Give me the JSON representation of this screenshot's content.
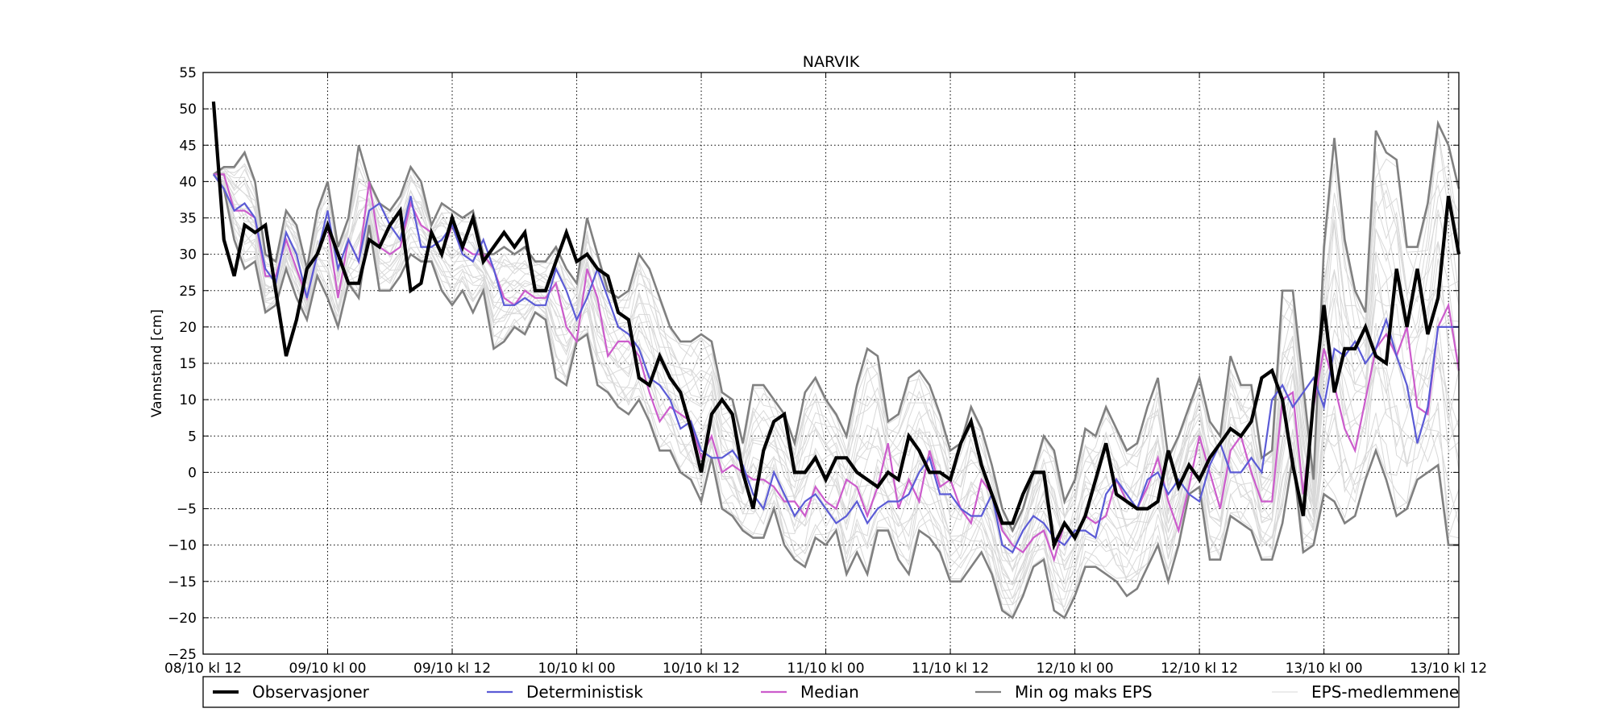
{
  "chart_data": {
    "type": "line",
    "title": "NARVIK",
    "xlabel": "",
    "ylabel": "Vannstand [cm]",
    "ylim": [
      -25,
      55
    ],
    "yticks": [
      55,
      50,
      45,
      40,
      35,
      30,
      25,
      20,
      15,
      10,
      5,
      0,
      -5,
      -10,
      -15,
      -20,
      -25
    ],
    "x_range_hours": [
      0,
      121
    ],
    "x_ticks": [
      {
        "hour": 0,
        "label": "08/10 kl 12"
      },
      {
        "hour": 12,
        "label": "09/10 kl 00"
      },
      {
        "hour": 24,
        "label": "09/10 kl 12"
      },
      {
        "hour": 36,
        "label": "10/10 kl 00"
      },
      {
        "hour": 48,
        "label": "10/10 kl 12"
      },
      {
        "hour": 60,
        "label": "11/10 kl 00"
      },
      {
        "hour": 72,
        "label": "11/10 kl 12"
      },
      {
        "hour": 84,
        "label": "12/10 kl 00"
      },
      {
        "hour": 96,
        "label": "12/10 kl 12"
      },
      {
        "hour": 108,
        "label": "13/10 kl 00"
      },
      {
        "hour": 120,
        "label": "13/10 kl 12"
      }
    ],
    "grid": true,
    "legend_position": "bottom",
    "colors": {
      "observations": "#000000",
      "deterministic": "#5b5bd6",
      "median": "#cc5ccc",
      "minmax": "#808080",
      "members": "#d9d9d9"
    },
    "series": [
      {
        "name": "Observasjoner",
        "key": "observations",
        "x": [
          1,
          2,
          3,
          4,
          5,
          6,
          7,
          8,
          9,
          10,
          11,
          12,
          13,
          14,
          15,
          16,
          17,
          18,
          19,
          20,
          21,
          22,
          23,
          24,
          25,
          26,
          27,
          28,
          29,
          30,
          31,
          32,
          33,
          34,
          35,
          36,
          37,
          38,
          39,
          40,
          41,
          42,
          43,
          44,
          45,
          46,
          47,
          48,
          49,
          50,
          51,
          52,
          53,
          54,
          55,
          56,
          57,
          58,
          59,
          60,
          61,
          62,
          63,
          64,
          65,
          66,
          67,
          68,
          69,
          70,
          71,
          72,
          73,
          74,
          75,
          76,
          77,
          78,
          79,
          80,
          81,
          82,
          83,
          84,
          85,
          86,
          87,
          88,
          89,
          90,
          91,
          92,
          93,
          94,
          95,
          96,
          97,
          98,
          99,
          100,
          101,
          102,
          103,
          104,
          105,
          106,
          107,
          108,
          109,
          110,
          111,
          112,
          113,
          114,
          115,
          116,
          117,
          118,
          119,
          120,
          121
        ],
        "values": [
          51,
          32,
          27,
          34,
          33,
          34,
          25,
          16,
          21,
          28,
          30,
          34,
          30,
          26,
          26,
          32,
          31,
          34,
          36,
          25,
          26,
          33,
          30,
          35,
          31,
          35,
          29,
          31,
          33,
          31,
          33,
          25,
          25,
          29,
          33,
          29,
          30,
          28,
          27,
          22,
          21,
          13,
          12,
          16,
          13,
          11,
          6,
          0,
          8,
          10,
          8,
          0,
          -5,
          3,
          7,
          8,
          0,
          0,
          2,
          -1,
          2,
          2,
          0,
          -1,
          -2,
          0,
          -1,
          5,
          3,
          0,
          0,
          -1,
          4,
          7,
          1,
          -3,
          -7,
          -7,
          -3,
          0,
          0,
          -10,
          -7,
          -9,
          -6,
          -1,
          4,
          -3,
          -4,
          -5,
          -5,
          -4,
          3,
          -2,
          1,
          -1,
          2,
          4,
          6,
          5,
          7,
          13,
          14,
          10,
          1,
          -6,
          10,
          23,
          11,
          17,
          17,
          20,
          16,
          15,
          28,
          20,
          28,
          19,
          24,
          38,
          30
        ]
      },
      {
        "name": "Deterministisk",
        "key": "deterministic",
        "x": [
          1,
          2,
          3,
          4,
          5,
          6,
          7,
          8,
          9,
          10,
          11,
          12,
          13,
          14,
          15,
          16,
          17,
          18,
          19,
          20,
          21,
          22,
          23,
          24,
          25,
          26,
          27,
          28,
          29,
          30,
          31,
          32,
          33,
          34,
          35,
          36,
          37,
          38,
          39,
          40,
          41,
          42,
          43,
          44,
          45,
          46,
          47,
          48,
          49,
          50,
          51,
          52,
          53,
          54,
          55,
          56,
          57,
          58,
          59,
          60,
          61,
          62,
          63,
          64,
          65,
          66,
          67,
          68,
          69,
          70,
          71,
          72,
          73,
          74,
          75,
          76,
          77,
          78,
          79,
          80,
          81,
          82,
          83,
          84,
          85,
          86,
          87,
          88,
          89,
          90,
          91,
          92,
          93,
          94,
          95,
          96,
          97,
          98,
          99,
          100,
          101,
          102,
          103,
          104,
          105,
          106,
          107,
          108,
          109,
          110,
          111,
          112,
          113,
          114,
          115,
          116,
          117,
          118,
          119,
          120,
          121
        ],
        "values": [
          41,
          39,
          36,
          37,
          35,
          28,
          26,
          33,
          30,
          24,
          30,
          36,
          28,
          32,
          29,
          36,
          37,
          34,
          32,
          38,
          31,
          31,
          32,
          34,
          30,
          29,
          32,
          28,
          23,
          23,
          24,
          23,
          23,
          28,
          25,
          21,
          24,
          28,
          24,
          20,
          19,
          17,
          13,
          12,
          10,
          6,
          7,
          3,
          2,
          2,
          3,
          1,
          -3,
          -5,
          0,
          -3,
          -6,
          -4,
          -3,
          -5,
          -7,
          -6,
          -4,
          -7,
          -5,
          -4,
          -4,
          -3,
          0,
          2,
          -3,
          -3,
          -5,
          -6,
          -6,
          -3,
          -10,
          -11,
          -8,
          -6,
          -7,
          -9,
          -10,
          -8,
          -8,
          -9,
          -3,
          -1,
          -3,
          -5,
          -1,
          0,
          -3,
          -1,
          -3,
          -4,
          1,
          4,
          0,
          0,
          2,
          0,
          10,
          12,
          9,
          11,
          13,
          9,
          17,
          16,
          18,
          15,
          17,
          21,
          16,
          12,
          4,
          9,
          20,
          20,
          20
        ]
      },
      {
        "name": "Median",
        "key": "median",
        "x": [
          1,
          2,
          3,
          4,
          5,
          6,
          7,
          8,
          9,
          10,
          11,
          12,
          13,
          14,
          15,
          16,
          17,
          18,
          19,
          20,
          21,
          22,
          23,
          24,
          25,
          26,
          27,
          28,
          29,
          30,
          31,
          32,
          33,
          34,
          35,
          36,
          37,
          38,
          39,
          40,
          41,
          42,
          43,
          44,
          45,
          46,
          47,
          48,
          49,
          50,
          51,
          52,
          53,
          54,
          55,
          56,
          57,
          58,
          59,
          60,
          61,
          62,
          63,
          64,
          65,
          66,
          67,
          68,
          69,
          70,
          71,
          72,
          73,
          74,
          75,
          76,
          77,
          78,
          79,
          80,
          81,
          82,
          83,
          84,
          85,
          86,
          87,
          88,
          89,
          90,
          91,
          92,
          93,
          94,
          95,
          96,
          97,
          98,
          99,
          100,
          101,
          102,
          103,
          104,
          105,
          106,
          107,
          108,
          109,
          110,
          111,
          112,
          113,
          114,
          115,
          116,
          117,
          118,
          119,
          120,
          121
        ],
        "values": [
          41,
          41,
          36,
          36,
          35,
          27,
          27,
          32,
          28,
          24,
          30,
          34,
          24,
          32,
          29,
          40,
          31,
          30,
          31,
          37,
          34,
          33,
          30,
          34,
          31,
          30,
          30,
          28,
          24,
          23,
          25,
          24,
          24,
          26,
          20,
          18,
          28,
          24,
          16,
          18,
          18,
          16,
          11,
          7,
          9,
          8,
          7,
          2,
          5,
          0,
          1,
          0,
          -1,
          -1,
          -2,
          -4,
          -4,
          -6,
          -2,
          -4,
          -5,
          -1,
          -2,
          -6,
          -2,
          4,
          -5,
          -1,
          -4,
          3,
          -2,
          -1,
          -5,
          -7,
          -1,
          -3,
          -8,
          -10,
          -11,
          -9,
          -8,
          -12,
          -7,
          -9,
          -6,
          -7,
          -6,
          -1,
          -4,
          -5,
          -2,
          2,
          -4,
          -8,
          -2,
          5,
          0,
          -5,
          3,
          5,
          0,
          -4,
          -4,
          10,
          11,
          -3,
          9,
          17,
          12,
          6,
          3,
          10,
          17,
          19,
          16,
          20,
          9,
          8,
          20,
          23,
          14
        ]
      },
      {
        "name": "Min og maks EPS",
        "key": "max",
        "x": [
          1,
          2,
          3,
          4,
          5,
          6,
          7,
          8,
          9,
          10,
          11,
          12,
          13,
          14,
          15,
          16,
          17,
          18,
          19,
          20,
          21,
          22,
          23,
          24,
          25,
          26,
          27,
          28,
          29,
          30,
          31,
          32,
          33,
          34,
          35,
          36,
          37,
          38,
          39,
          40,
          41,
          42,
          43,
          44,
          45,
          46,
          47,
          48,
          49,
          50,
          51,
          52,
          53,
          54,
          55,
          56,
          57,
          58,
          59,
          60,
          61,
          62,
          63,
          64,
          65,
          66,
          67,
          68,
          69,
          70,
          71,
          72,
          73,
          74,
          75,
          76,
          77,
          78,
          79,
          80,
          81,
          82,
          83,
          84,
          85,
          86,
          87,
          88,
          89,
          90,
          91,
          92,
          93,
          94,
          95,
          96,
          97,
          98,
          99,
          100,
          101,
          102,
          103,
          104,
          105,
          106,
          107,
          108,
          109,
          110,
          111,
          112,
          113,
          114,
          115,
          116,
          117,
          118,
          119,
          120,
          121
        ],
        "values": [
          41,
          42,
          42,
          44,
          40,
          30,
          29,
          36,
          34,
          28,
          36,
          40,
          31,
          35,
          45,
          40,
          37,
          36,
          38,
          42,
          40,
          34,
          37,
          36,
          35,
          36,
          30,
          30,
          31,
          30,
          31,
          29,
          29,
          31,
          28,
          26,
          35,
          30,
          25,
          24,
          25,
          30,
          28,
          24,
          20,
          18,
          18,
          19,
          18,
          11,
          10,
          4,
          12,
          12,
          10,
          8,
          4,
          11,
          13,
          10,
          8,
          5,
          12,
          17,
          16,
          7,
          8,
          13,
          14,
          12,
          8,
          3,
          4,
          9,
          6,
          1,
          -5,
          -8,
          -5,
          0,
          5,
          3,
          -4,
          -1,
          6,
          5,
          9,
          6,
          3,
          4,
          9,
          13,
          2,
          5,
          9,
          13,
          7,
          5,
          16,
          12,
          12,
          2,
          3,
          25,
          25,
          12,
          -1,
          31,
          46,
          32,
          25,
          22,
          47,
          44,
          43,
          31,
          31,
          37,
          48,
          45,
          39
        ]
      },
      {
        "name": "",
        "key": "min",
        "x": [
          1,
          2,
          3,
          4,
          5,
          6,
          7,
          8,
          9,
          10,
          11,
          12,
          13,
          14,
          15,
          16,
          17,
          18,
          19,
          20,
          21,
          22,
          23,
          24,
          25,
          26,
          27,
          28,
          29,
          30,
          31,
          32,
          33,
          34,
          35,
          36,
          37,
          38,
          39,
          40,
          41,
          42,
          43,
          44,
          45,
          46,
          47,
          48,
          49,
          50,
          51,
          52,
          53,
          54,
          55,
          56,
          57,
          58,
          59,
          60,
          61,
          62,
          63,
          64,
          65,
          66,
          67,
          68,
          69,
          70,
          71,
          72,
          73,
          74,
          75,
          76,
          77,
          78,
          79,
          80,
          81,
          82,
          83,
          84,
          85,
          86,
          87,
          88,
          89,
          90,
          91,
          92,
          93,
          94,
          95,
          96,
          97,
          98,
          99,
          100,
          101,
          102,
          103,
          104,
          105,
          106,
          107,
          108,
          109,
          110,
          111,
          112,
          113,
          114,
          115,
          116,
          117,
          118,
          119,
          120,
          121
        ],
        "values": [
          41,
          39,
          32,
          28,
          29,
          22,
          23,
          28,
          24,
          21,
          27,
          24,
          20,
          26,
          24,
          34,
          25,
          25,
          27,
          30,
          29,
          29,
          25,
          23,
          25,
          22,
          25,
          17,
          18,
          20,
          19,
          22,
          21,
          13,
          12,
          18,
          19,
          12,
          11,
          9,
          8,
          10,
          7,
          3,
          3,
          0,
          -1,
          -4,
          2,
          -5,
          -6,
          -8,
          -9,
          -9,
          -5,
          -10,
          -12,
          -13,
          -9,
          -10,
          -8,
          -14,
          -11,
          -14,
          -8,
          -8,
          -12,
          -14,
          -8,
          -9,
          -11,
          -15,
          -15,
          -13,
          -11,
          -14,
          -19,
          -20,
          -17,
          -13,
          -12,
          -19,
          -20,
          -17,
          -13,
          -13,
          -14,
          -15,
          -17,
          -16,
          -13,
          -10,
          -15,
          -10,
          -3,
          -2,
          -12,
          -12,
          -6,
          -7,
          -8,
          -12,
          -12,
          -7,
          2,
          -11,
          -10,
          -3,
          -4,
          -7,
          -6,
          -1,
          3,
          -1,
          -6,
          -5,
          -1,
          0,
          1,
          -10,
          -10
        ]
      }
    ]
  },
  "legend": {
    "items": [
      {
        "label": "Observasjoner"
      },
      {
        "label": "Deterministisk"
      },
      {
        "label": "Median"
      },
      {
        "label": "Min og maks EPS"
      },
      {
        "label": "EPS-medlemmene"
      }
    ]
  }
}
